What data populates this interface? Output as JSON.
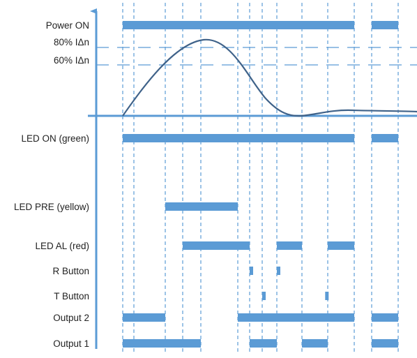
{
  "colors": {
    "bar": "#5b9bd5",
    "axis": "#5b9bd5",
    "curve": "#3f6289",
    "dashes": "#5b9bd5"
  },
  "threshold_labels": {
    "t80": "80% IΔn",
    "t60": "60% IΔn"
  },
  "signals": [
    {
      "id": "power-on",
      "label": "Power ON",
      "segments": [
        [
          0,
          11
        ],
        [
          12,
          13
        ]
      ]
    },
    {
      "id": "led-on",
      "label": "LED ON (green)",
      "segments": [
        [
          0,
          11
        ],
        [
          12,
          13
        ]
      ]
    },
    {
      "id": "led-pre",
      "label": "LED PRE (yellow)",
      "segments": [
        [
          2,
          5
        ]
      ]
    },
    {
      "id": "led-al",
      "label": "LED AL (red)",
      "segments": [
        [
          3,
          6
        ],
        [
          8,
          9
        ],
        [
          10,
          11
        ]
      ]
    },
    {
      "id": "r-button",
      "label": "R Button",
      "segments": [
        [
          6,
          6.1
        ],
        [
          8,
          8.1
        ]
      ]
    },
    {
      "id": "t-button",
      "label": "T Button",
      "segments": [
        [
          7,
          7.1
        ],
        [
          9.9,
          10
        ]
      ]
    },
    {
      "id": "output-2",
      "label": "Output 2",
      "segments": [
        [
          0,
          2
        ],
        [
          5,
          11
        ],
        [
          12,
          13
        ]
      ]
    },
    {
      "id": "output-1",
      "label": "Output 1",
      "segments": [
        [
          0,
          4
        ],
        [
          6,
          8
        ],
        [
          9,
          10
        ],
        [
          12,
          13
        ]
      ]
    }
  ]
}
